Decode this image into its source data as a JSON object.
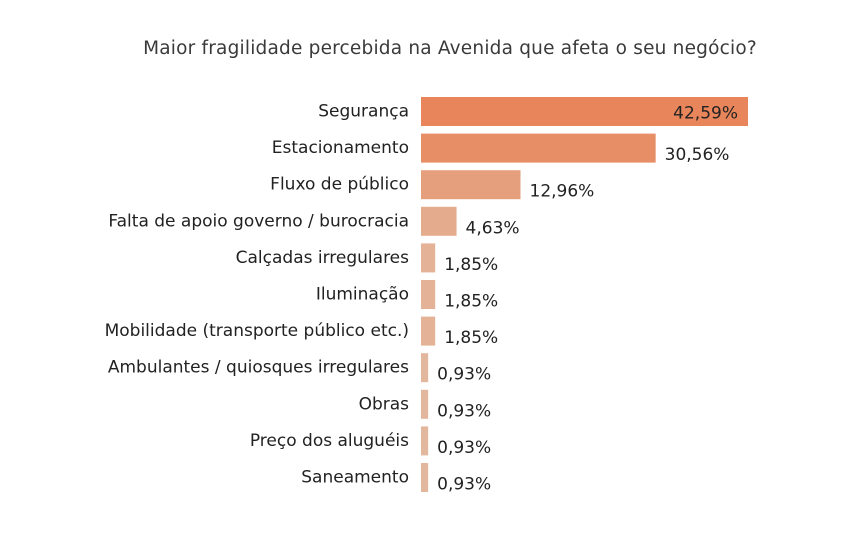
{
  "chart_data": {
    "type": "bar",
    "orientation": "horizontal",
    "title": "Maior fragilidade percebida na Avenida que afeta o seu negócio?",
    "xlabel": "",
    "ylabel": "",
    "grid": false,
    "legend": "none",
    "xlim": [
      0,
      42.59
    ],
    "categories": [
      "Segurança",
      "Estacionamento",
      "Fluxo de público",
      "Falta de apoio governo / burocracia",
      "Calçadas irregulares",
      "Iluminação",
      "Mobilidade (transporte público etc.)",
      "Ambulantes / quiosques irregulares",
      "Obras",
      "Preço dos aluguéis",
      "Saneamento"
    ],
    "values": [
      42.59,
      30.56,
      12.96,
      4.63,
      1.85,
      1.85,
      1.85,
      0.93,
      0.93,
      0.93,
      0.93
    ],
    "data_labels": [
      "42,59%",
      "30,56%",
      "12,96%",
      "4,63%",
      "1,85%",
      "1,85%",
      "1,85%",
      "0,93%",
      "0,93%",
      "0,93%",
      "0,93%"
    ],
    "colors": {
      "max": "#E8855A",
      "min": "#E3B79D"
    }
  }
}
